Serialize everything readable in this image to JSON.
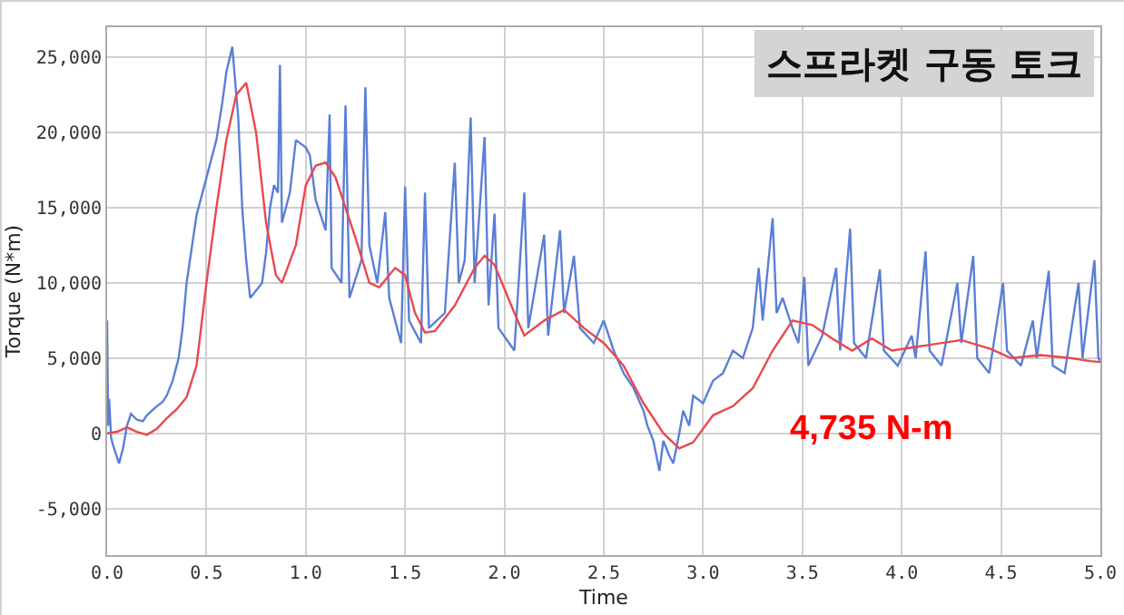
{
  "chart_data": {
    "type": "line",
    "title": "스프라켓 구동 토크",
    "xlabel": "Time",
    "ylabel": "Torque (N*m)",
    "annotations": [
      "4,735 N-m"
    ],
    "xlim": [
      0,
      5
    ],
    "ylim": [
      -8100,
      27000
    ],
    "xticks": [
      {
        "value": 0,
        "label": "0.0"
      },
      {
        "value": 0.5,
        "label": "0.5"
      },
      {
        "value": 1,
        "label": "1.0"
      },
      {
        "value": 1.5,
        "label": "1.5"
      },
      {
        "value": 2,
        "label": "2.0"
      },
      {
        "value": 2.5,
        "label": "2.5"
      },
      {
        "value": 3,
        "label": "3.0"
      },
      {
        "value": 3.5,
        "label": "3.5"
      },
      {
        "value": 4,
        "label": "4.0"
      },
      {
        "value": 4.5,
        "label": "4.5"
      },
      {
        "value": 5,
        "label": "5.0"
      }
    ],
    "yticks": [
      {
        "value": -5000,
        "label": "-5,000"
      },
      0,
      {
        "value": 5000,
        "label": "5,000"
      },
      {
        "value": 10000,
        "label": "10,000"
      },
      {
        "value": 15000,
        "label": "15,000"
      },
      {
        "value": 20000,
        "label": "20,000"
      },
      {
        "value": 25000,
        "label": "25,000"
      }
    ],
    "grid": true,
    "marker": "none",
    "line_style": "solid",
    "series": [
      {
        "color": "#5b7fd6",
        "x": [
          0,
          0.005,
          0.01,
          0.02,
          0.03,
          0.06,
          0.08,
          0.1,
          0.12,
          0.15,
          0.18,
          0.2,
          0.25,
          0.28,
          0.3,
          0.33,
          0.36,
          0.38,
          0.4,
          0.45,
          0.5,
          0.55,
          0.58,
          0.6,
          0.63,
          0.66,
          0.68,
          0.7,
          0.72,
          0.75,
          0.78,
          0.8,
          0.82,
          0.84,
          0.86,
          0.87,
          0.88,
          0.92,
          0.95,
          1.0,
          1.02,
          1.05,
          1.1,
          1.12,
          1.13,
          1.18,
          1.2,
          1.22,
          1.28,
          1.3,
          1.32,
          1.36,
          1.4,
          1.42,
          1.48,
          1.5,
          1.52,
          1.58,
          1.6,
          1.62,
          1.7,
          1.75,
          1.77,
          1.8,
          1.83,
          1.85,
          1.9,
          1.92,
          1.95,
          1.97,
          2.05,
          2.1,
          2.12,
          2.2,
          2.22,
          2.28,
          2.3,
          2.35,
          2.38,
          2.45,
          2.5,
          2.55,
          2.6,
          2.65,
          2.7,
          2.72,
          2.75,
          2.78,
          2.8,
          2.83,
          2.85,
          2.88,
          2.9,
          2.93,
          2.95,
          3.0,
          3.05,
          3.1,
          3.15,
          3.2,
          3.25,
          3.28,
          3.3,
          3.35,
          3.37,
          3.4,
          3.45,
          3.48,
          3.51,
          3.53,
          3.6,
          3.67,
          3.69,
          3.74,
          3.76,
          3.82,
          3.89,
          3.91,
          3.98,
          4.05,
          4.07,
          4.12,
          4.14,
          4.2,
          4.28,
          4.3,
          4.36,
          4.38,
          4.44,
          4.51,
          4.53,
          4.6,
          4.66,
          4.68,
          4.74,
          4.76,
          4.82,
          4.89,
          4.91,
          4.97,
          4.99,
          5.0
        ],
        "values": [
          7500,
          500,
          2300,
          -300,
          -800,
          -2000,
          -1000,
          500,
          1300,
          900,
          800,
          1200,
          1800,
          2100,
          2500,
          3500,
          5000,
          7000,
          10000,
          14500,
          17000,
          19500,
          22000,
          24000,
          25700,
          21000,
          15000,
          11500,
          9000,
          9500,
          10000,
          12000,
          15000,
          16500,
          16000,
          24500,
          14000,
          16000,
          19500,
          19000,
          18500,
          15500,
          13500,
          21200,
          11000,
          10000,
          21800,
          9000,
          11500,
          23000,
          12500,
          10000,
          14700,
          9000,
          6000,
          16400,
          7500,
          6000,
          16000,
          7000,
          8000,
          18000,
          10000,
          11500,
          21000,
          10000,
          19700,
          8500,
          14600,
          7000,
          5500,
          16000,
          7000,
          13200,
          6500,
          13500,
          8000,
          11800,
          7000,
          6000,
          7500,
          5500,
          4000,
          3000,
          1500,
          500,
          -500,
          -2500,
          -500,
          -1500,
          -2000,
          0,
          1500,
          500,
          2500,
          2000,
          3500,
          4000,
          5500,
          5000,
          7000,
          11000,
          7500,
          14300,
          8000,
          9000,
          7000,
          6000,
          10400,
          4500,
          6500,
          11000,
          5500,
          13600,
          6000,
          5000,
          10900,
          5500,
          4500,
          6500,
          5000,
          12100,
          5500,
          4500,
          10000,
          6000,
          11800,
          5000,
          4000,
          10000,
          5500,
          4500,
          7500,
          5000,
          10800,
          4500,
          4000,
          10000,
          5000,
          11500,
          5000,
          4800
        ]
      },
      {
        "color": "#e8484f",
        "x": [
          0,
          0.05,
          0.1,
          0.15,
          0.2,
          0.25,
          0.3,
          0.35,
          0.4,
          0.45,
          0.5,
          0.55,
          0.6,
          0.65,
          0.7,
          0.75,
          0.8,
          0.85,
          0.88,
          0.95,
          1.0,
          1.05,
          1.1,
          1.15,
          1.25,
          1.32,
          1.37,
          1.45,
          1.5,
          1.55,
          1.6,
          1.65,
          1.75,
          1.85,
          1.9,
          1.95,
          2.05,
          2.1,
          2.2,
          2.3,
          2.4,
          2.5,
          2.6,
          2.7,
          2.8,
          2.88,
          2.95,
          3.05,
          3.15,
          3.25,
          3.35,
          3.45,
          3.55,
          3.65,
          3.75,
          3.85,
          3.95,
          4.1,
          4.3,
          4.45,
          4.55,
          4.7,
          4.85,
          4.95,
          5.0
        ],
        "values": [
          0,
          100,
          400,
          100,
          -100,
          300,
          1000,
          1600,
          2400,
          4500,
          10000,
          15000,
          19500,
          22500,
          23300,
          20000,
          14000,
          10500,
          10000,
          12500,
          16500,
          17800,
          18000,
          17000,
          13000,
          10000,
          9700,
          11000,
          10500,
          8000,
          6700,
          6800,
          8500,
          11000,
          11800,
          11200,
          8000,
          6500,
          7500,
          8200,
          7000,
          6000,
          4500,
          2000,
          0,
          -1000,
          -600,
          1200,
          1800,
          3000,
          5500,
          7500,
          7200,
          6300,
          5500,
          6300,
          5500,
          5800,
          6200,
          5600,
          5000,
          5200,
          5000,
          4800,
          4735
        ]
      }
    ]
  }
}
